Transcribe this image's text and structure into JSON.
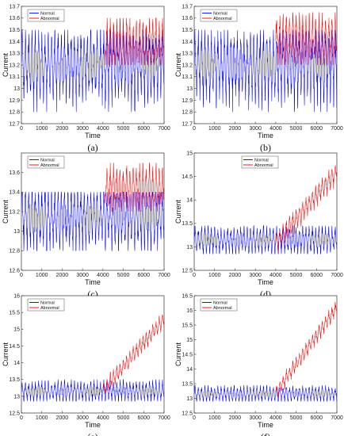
{
  "chart_data": [
    {
      "panel": "(a)",
      "type": "line",
      "xlabel": "Time",
      "ylabel": "Current",
      "xlim": [
        0,
        7000
      ],
      "ylim": [
        12.7,
        13.7
      ],
      "xticks": [
        0,
        1000,
        2000,
        3000,
        4000,
        5000,
        6000,
        7000
      ],
      "yticks": [
        12.7,
        12.8,
        12.9,
        13,
        13.1,
        13.2,
        13.3,
        13.4,
        13.5,
        13.6,
        13.7
      ],
      "legend": "top-left",
      "series": [
        {
          "name": "Normal",
          "color": "#0000ff",
          "x": [
            0,
            7000
          ],
          "baseline": [
            13.2,
            13.2
          ],
          "amplitude": 0.18,
          "peak_max": 13.5,
          "trough_min": 12.8
        },
        {
          "name": "Abnormal",
          "color": "#ff0000",
          "x": [
            4100,
            7000
          ],
          "baseline": [
            13.4,
            13.4
          ],
          "amplitude": 0.12,
          "peak_max": 13.6,
          "trough_min": 13.2
        }
      ]
    },
    {
      "panel": "(b)",
      "type": "line",
      "xlabel": "Time",
      "ylabel": "Current",
      "xlim": [
        0,
        7000
      ],
      "ylim": [
        12.7,
        13.7
      ],
      "xticks": [
        0,
        1000,
        2000,
        3000,
        4000,
        5000,
        6000,
        7000
      ],
      "yticks": [
        12.7,
        12.8,
        12.9,
        13,
        13.1,
        13.2,
        13.3,
        13.4,
        13.5,
        13.6,
        13.7
      ],
      "legend": "top-left",
      "series": [
        {
          "name": "Normal",
          "color": "#0000ff",
          "x": [
            0,
            7000
          ],
          "baseline": [
            13.2,
            13.2
          ],
          "amplitude": 0.18,
          "peak_max": 13.5,
          "trough_min": 12.8
        },
        {
          "name": "Abnormal",
          "color": "#ff0000",
          "x": [
            4000,
            7000
          ],
          "baseline": [
            13.42,
            13.42
          ],
          "amplitude": 0.12,
          "peak_max": 13.65,
          "trough_min": 13.2
        }
      ]
    },
    {
      "panel": "(c)",
      "type": "line",
      "xlabel": "Time",
      "ylabel": "Current",
      "xlim": [
        0,
        7000
      ],
      "ylim": [
        12.6,
        13.8
      ],
      "xticks": [
        0,
        1000,
        2000,
        3000,
        4000,
        5000,
        6000,
        7000
      ],
      "yticks": [
        12.6,
        12.8,
        13,
        13.2,
        13.4,
        13.6
      ],
      "legend": "top-left",
      "series": [
        {
          "name": "Normal",
          "color": "#0000ff",
          "x": [
            0,
            7000
          ],
          "baseline": [
            13.15,
            13.15
          ],
          "amplitude": 0.2,
          "peak_max": 13.4,
          "trough_min": 12.8
        },
        {
          "name": "Abnormal",
          "color": "#ff0000",
          "x": [
            4100,
            7000
          ],
          "baseline": [
            13.45,
            13.45
          ],
          "amplitude": 0.13,
          "peak_max": 13.7,
          "trough_min": 13.2
        }
      ]
    },
    {
      "panel": "(d)",
      "type": "line",
      "xlabel": "Time",
      "ylabel": "Current",
      "xlim": [
        0,
        7000
      ],
      "ylim": [
        12.5,
        15
      ],
      "xticks": [
        0,
        1000,
        2000,
        3000,
        4000,
        5000,
        6000,
        7000
      ],
      "yticks": [
        12.5,
        13,
        13.5,
        14,
        14.5,
        15
      ],
      "legend": "top-center",
      "series": [
        {
          "name": "Normal",
          "color": "#0000ff",
          "x": [
            0,
            7000
          ],
          "baseline": [
            13.15,
            13.15
          ],
          "amplitude": 0.18,
          "peak_max": 13.45,
          "trough_min": 12.85
        },
        {
          "name": "Abnormal",
          "color": "#ff0000",
          "x": [
            4000,
            7000
          ],
          "baseline": [
            13.1,
            14.6
          ],
          "amplitude": 0.12,
          "peak_max": 14.75,
          "trough_min": 13.0
        }
      ]
    },
    {
      "panel": "(e)",
      "type": "line",
      "xlabel": "Time",
      "ylabel": "Current",
      "xlim": [
        0,
        7000
      ],
      "ylim": [
        12.5,
        16
      ],
      "xticks": [
        0,
        1000,
        2000,
        3000,
        4000,
        5000,
        6000,
        7000
      ],
      "yticks": [
        12.5,
        13,
        13.5,
        14,
        14.5,
        15,
        15.5,
        16
      ],
      "legend": "top-left",
      "series": [
        {
          "name": "Normal",
          "color": "#0000ff",
          "x": [
            0,
            7000
          ],
          "baseline": [
            13.15,
            13.15
          ],
          "amplitude": 0.18,
          "peak_max": 13.5,
          "trough_min": 12.85
        },
        {
          "name": "Abnormal",
          "color": "#ff0000",
          "x": [
            4000,
            7000
          ],
          "baseline": [
            13.2,
            15.3
          ],
          "amplitude": 0.14,
          "peak_max": 15.45,
          "trough_min": 13.1
        }
      ]
    },
    {
      "panel": "(f)",
      "type": "line",
      "xlabel": "Time",
      "ylabel": "Current",
      "xlim": [
        0,
        7000
      ],
      "ylim": [
        12.5,
        16.5
      ],
      "xticks": [
        0,
        1000,
        2000,
        3000,
        4000,
        5000,
        6000,
        7000
      ],
      "yticks": [
        12.5,
        13,
        13.5,
        14,
        14.5,
        15,
        15.5,
        16,
        16.5
      ],
      "legend": "top-left",
      "series": [
        {
          "name": "Normal",
          "color": "#0000ff",
          "x": [
            0,
            7000
          ],
          "baseline": [
            13.15,
            13.15
          ],
          "amplitude": 0.16,
          "peak_max": 13.45,
          "trough_min": 12.9
        },
        {
          "name": "Abnormal",
          "color": "#ff0000",
          "x": [
            4000,
            7000
          ],
          "baseline": [
            13.2,
            16.1
          ],
          "amplitude": 0.14,
          "peak_max": 16.25,
          "trough_min": 13.1
        }
      ]
    }
  ]
}
